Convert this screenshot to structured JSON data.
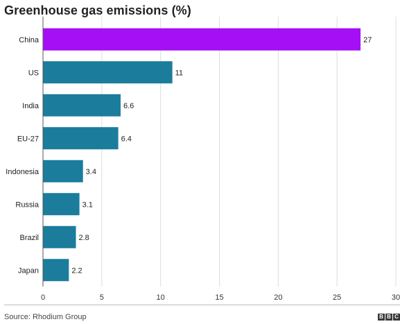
{
  "chart_data": {
    "type": "bar",
    "orientation": "horizontal",
    "title": "Greenhouse gas emissions (%)",
    "categories": [
      "China",
      "US",
      "India",
      "EU-27",
      "Indonesia",
      "Russia",
      "Brazil",
      "Japan"
    ],
    "values": [
      27,
      11,
      6.6,
      6.4,
      3.4,
      3.1,
      2.8,
      2.2
    ],
    "value_labels": [
      "27",
      "11",
      "6.6",
      "6.4",
      "3.4",
      "3.1",
      "2.8",
      "2.2"
    ],
    "xlim": [
      0,
      30
    ],
    "x_ticks": [
      "0",
      "5",
      "10",
      "15",
      "20",
      "25",
      "30"
    ],
    "grid": true,
    "colors": {
      "highlight": "#a50ff5",
      "default": "#1b7c9c"
    },
    "highlight_category": "China"
  },
  "footer": {
    "source": "Source: Rhodium Group",
    "logo_letters": [
      "B",
      "B",
      "C"
    ]
  }
}
